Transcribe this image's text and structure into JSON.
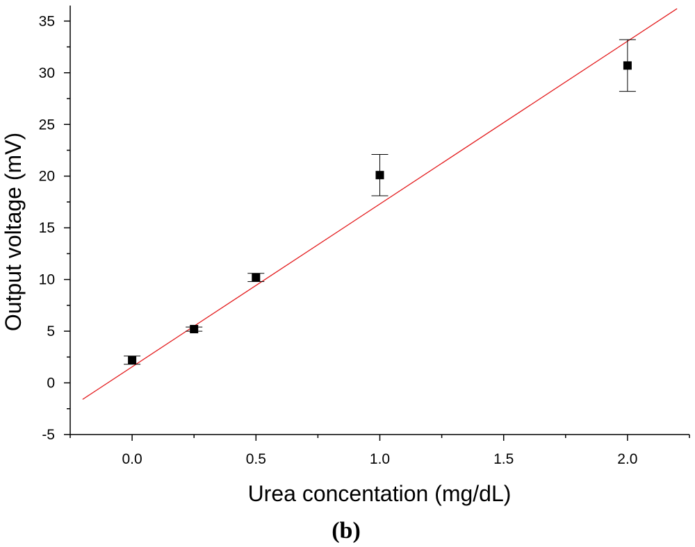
{
  "chart_data": {
    "type": "scatter",
    "xlabel": "Urea concentation (mg/dL)",
    "ylabel": "Output voltage (mV)",
    "xlim": [
      -0.25,
      2.25
    ],
    "ylim": [
      -5,
      36.5
    ],
    "x_ticks": [
      0.0,
      0.5,
      1.0,
      1.5,
      2.0
    ],
    "x_tick_labels": [
      "0.0",
      "0.5",
      "1.0",
      "1.5",
      "2.0"
    ],
    "y_ticks": [
      -5,
      0,
      5,
      10,
      15,
      20,
      25,
      30,
      35
    ],
    "y_tick_labels": [
      "-5",
      "0",
      "5",
      "10",
      "15",
      "20",
      "25",
      "30",
      "35"
    ],
    "grid": false,
    "series": [
      {
        "marker": "square",
        "color": "#000000",
        "x": [
          0.0,
          0.25,
          0.5,
          1.0,
          2.0
        ],
        "y": [
          2.2,
          5.2,
          10.2,
          20.1,
          30.7
        ],
        "error": [
          0.4,
          0.2,
          0.4,
          2.0,
          2.5
        ]
      }
    ],
    "fit_line": {
      "color": "#e31a1c",
      "x": [
        -0.2,
        2.2
      ],
      "y": [
        -1.6,
        36.2
      ]
    },
    "panel_label": "(b)"
  }
}
